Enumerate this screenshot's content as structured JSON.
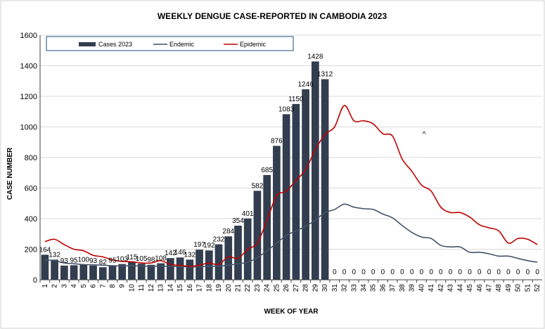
{
  "chart_data": {
    "type": "bar",
    "title": "WEEKLY DENGUE CASE-REPORTED IN CAMBODIA 2023",
    "xlabel": "WEEK OF YEAR",
    "ylabel": "CASE NUMBER",
    "ylim": [
      0,
      1600
    ],
    "yticks": [
      0,
      200,
      400,
      600,
      800,
      1000,
      1200,
      1400,
      1600
    ],
    "grid": true,
    "legend_position": "top-left",
    "categories": [
      "1",
      "2",
      "3",
      "4",
      "5",
      "6",
      "7",
      "8",
      "9",
      "10",
      "11",
      "12",
      "13",
      "14",
      "15",
      "16",
      "17",
      "18",
      "19",
      "20",
      "21",
      "22",
      "23",
      "24",
      "25",
      "26",
      "27",
      "28",
      "29",
      "30",
      "31",
      "32",
      "33",
      "34",
      "35",
      "36",
      "37",
      "38",
      "39",
      "40",
      "41",
      "42",
      "43",
      "44",
      "45",
      "46",
      "47",
      "48",
      "49",
      "50",
      "51",
      "52"
    ],
    "series": [
      {
        "name": "Cases 2023",
        "type": "bar",
        "color": "#323e4f",
        "values": [
          164,
          132,
          93,
          95,
          100,
          93,
          82,
          95,
          103,
          115,
          105,
          98,
          108,
          142,
          146,
          132,
          197,
          192,
          232,
          284,
          354,
          401,
          582,
          685,
          876,
          1083,
          1150,
          1246,
          1428,
          1312,
          0,
          0,
          0,
          0,
          0,
          0,
          0,
          0,
          0,
          0,
          0,
          0,
          0,
          0,
          0,
          0,
          0,
          0,
          0,
          0,
          0,
          0
        ],
        "labels": [
          "164",
          "132",
          "93",
          "95",
          "100",
          "93",
          "82",
          "95",
          "103",
          "115",
          "105",
          "98",
          "108",
          "142",
          "146",
          "132",
          "197",
          "192",
          "232",
          "284",
          "354",
          "401",
          "582",
          "685",
          "876",
          "1083",
          "1150",
          "1246",
          "1428",
          "1312",
          "0",
          "0",
          "0",
          "0",
          "0",
          "0",
          "0",
          "0",
          "0",
          "0",
          "0",
          "0",
          "0",
          "0",
          "0",
          "0",
          "0",
          "0",
          "0",
          "0",
          "0",
          "0"
        ]
      },
      {
        "name": "Endemic",
        "type": "line",
        "color": "#44546a",
        "values": [
          130,
          125,
          110,
          105,
          100,
          98,
          95,
          92,
          90,
          92,
          90,
          88,
          90,
          88,
          86,
          85,
          85,
          88,
          90,
          95,
          105,
          115,
          145,
          190,
          240,
          290,
          320,
          350,
          390,
          440,
          460,
          495,
          475,
          465,
          460,
          430,
          405,
          355,
          310,
          280,
          270,
          225,
          215,
          215,
          180,
          180,
          170,
          155,
          155,
          140,
          125,
          115
        ]
      },
      {
        "name": "Epidemic",
        "type": "line",
        "color": "#c00000",
        "values": [
          250,
          265,
          230,
          200,
          190,
          160,
          150,
          130,
          120,
          118,
          110,
          110,
          125,
          100,
          95,
          88,
          95,
          110,
          100,
          150,
          140,
          200,
          240,
          390,
          550,
          580,
          650,
          720,
          850,
          950,
          1000,
          1140,
          1040,
          1040,
          1020,
          955,
          940,
          790,
          710,
          620,
          580,
          475,
          440,
          440,
          410,
          360,
          340,
          320,
          240,
          270,
          265,
          230
        ]
      }
    ],
    "annotations": [
      "^"
    ]
  }
}
